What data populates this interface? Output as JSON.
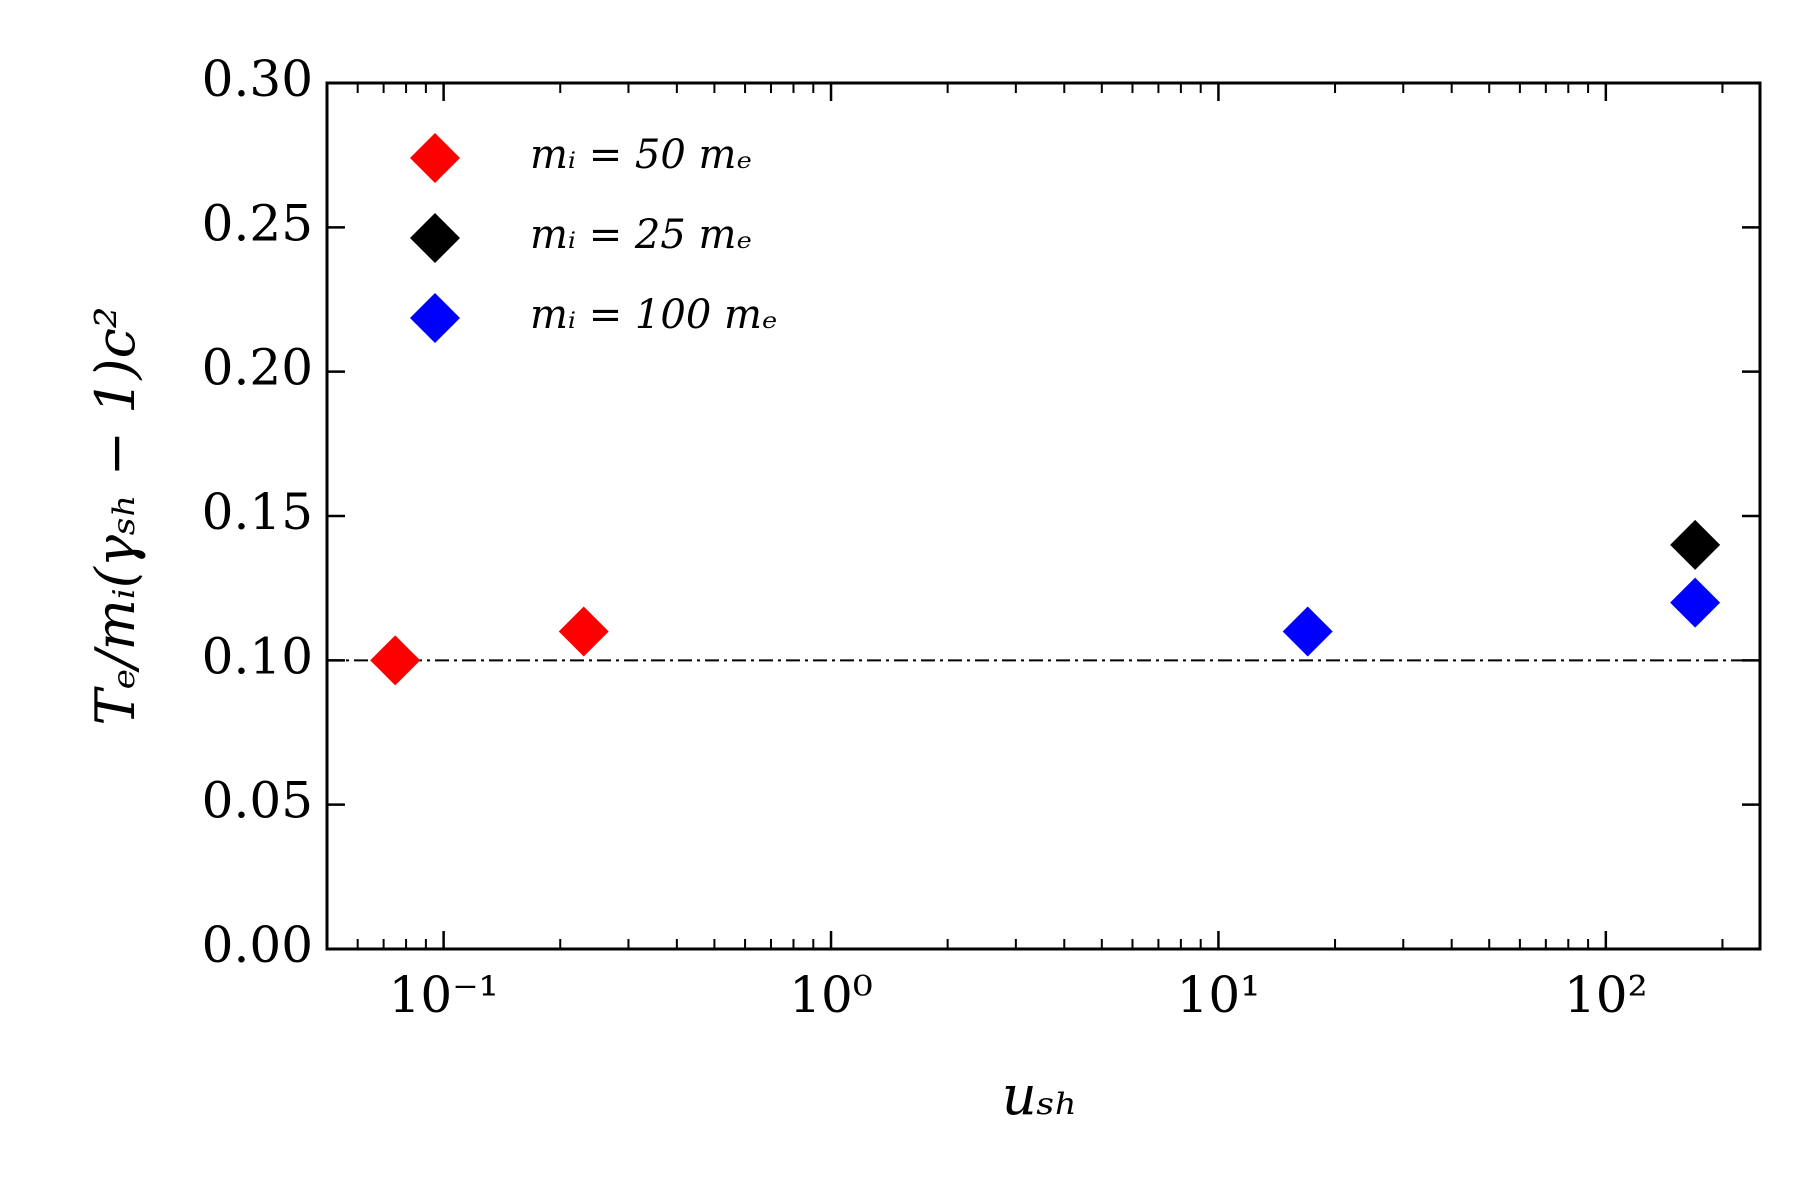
{
  "chart_data": {
    "type": "scatter",
    "xlabel": "uₛₕ",
    "ylabel": "Tₑ/mᵢ(γₛₕ − 1)c²",
    "xscale": "log",
    "xlim": [
      0.05,
      250
    ],
    "ylim": [
      0,
      0.3
    ],
    "xticks": [
      {
        "value": 0.1,
        "label": "10⁻¹"
      },
      {
        "value": 1,
        "label": "10⁰"
      },
      {
        "value": 10,
        "label": "10¹"
      },
      {
        "value": 100,
        "label": "10²"
      }
    ],
    "xminorticks": [
      0.06,
      0.07,
      0.08,
      0.09,
      0.2,
      0.3,
      0.4,
      0.5,
      0.6,
      0.7,
      0.8,
      0.9,
      2,
      3,
      4,
      5,
      6,
      7,
      8,
      9,
      20,
      30,
      40,
      50,
      60,
      70,
      80,
      90,
      200
    ],
    "yticks": [
      {
        "value": 0,
        "label": "0.00"
      },
      {
        "value": 0.05,
        "label": "0.05"
      },
      {
        "value": 0.1,
        "label": "0.10"
      },
      {
        "value": 0.15,
        "label": "0.15"
      },
      {
        "value": 0.2,
        "label": "0.20"
      },
      {
        "value": 0.25,
        "label": "0.25"
      },
      {
        "value": 0.3,
        "label": "0.30"
      }
    ],
    "hline": 0.1,
    "legend": "upper left",
    "series": [
      {
        "name": "mᵢ = 50 mₑ",
        "color": "#ff0000",
        "x": [
          0.075,
          0.23
        ],
        "values": [
          0.1,
          0.11
        ]
      },
      {
        "name": "mᵢ = 25 mₑ",
        "color": "#000000",
        "x": [
          170
        ],
        "values": [
          0.14
        ]
      },
      {
        "name": "mᵢ = 100 mₑ",
        "color": "#0000ff",
        "x": [
          17,
          170
        ],
        "values": [
          0.11,
          0.12
        ]
      }
    ]
  }
}
